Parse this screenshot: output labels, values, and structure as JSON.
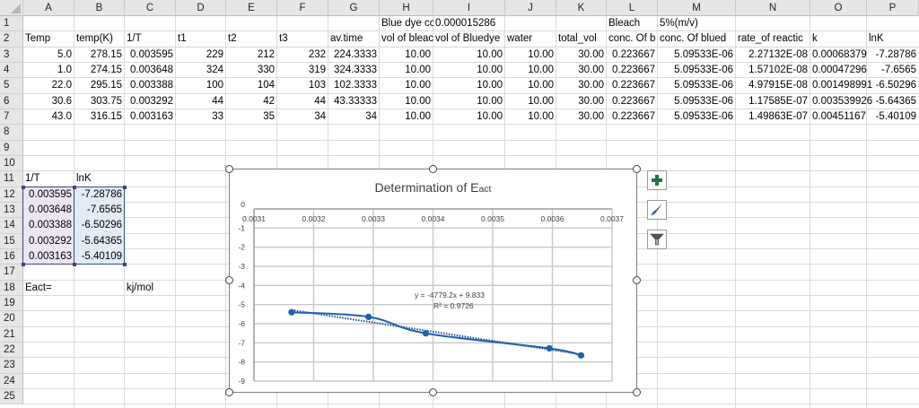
{
  "spreadsheet": {
    "columns": [
      "A",
      "B",
      "C",
      "D",
      "E",
      "F",
      "G",
      "H",
      "I",
      "J",
      "K",
      "L",
      "M",
      "N",
      "O",
      "P"
    ],
    "rows": [
      "1",
      "2",
      "3",
      "4",
      "5",
      "6",
      "7",
      "8",
      "9",
      "10",
      "11",
      "12",
      "13",
      "14",
      "15",
      "16",
      "17",
      "18",
      "19",
      "20",
      "21",
      "22",
      "23",
      "24",
      "25"
    ],
    "row1": {
      "H": "Blue dye cc",
      "I": "0.000015286",
      "L": "Bleach",
      "M": "5%(m/v)"
    },
    "row2": {
      "A": "Temp",
      "B": "temp(K)",
      "C": "1/T",
      "D": "t1",
      "E": "t2",
      "F": "t3",
      "G": "av.time",
      "H": "vol of bleac",
      "I": "vol of Bluedye",
      "J": "water",
      "K": "total_vol",
      "L": "conc. Of b",
      "M": "conc. Of blued",
      "N": "rate_of reactic",
      "O": "k",
      "P": "lnK"
    },
    "data_rows": [
      {
        "A": "5.0",
        "B": "278.15",
        "C": "0.003595",
        "D": "229",
        "E": "212",
        "F": "232",
        "G": "224.3333",
        "H": "10.00",
        "I": "10.00",
        "J": "10.00",
        "K": "30.00",
        "L": "0.223667",
        "M": "5.09533E-06",
        "N": "2.27132E-08",
        "O": "0.00068379",
        "P": "-7.28786"
      },
      {
        "A": "1.0",
        "B": "274.15",
        "C": "0.003648",
        "D": "324",
        "E": "330",
        "F": "319",
        "G": "324.3333",
        "H": "10.00",
        "I": "10.00",
        "J": "10.00",
        "K": "30.00",
        "L": "0.223667",
        "M": "5.09533E-06",
        "N": "1.57102E-08",
        "O": "0.00047296",
        "P": "-7.6565"
      },
      {
        "A": "22.0",
        "B": "295.15",
        "C": "0.003388",
        "D": "100",
        "E": "104",
        "F": "103",
        "G": "102.3333",
        "H": "10.00",
        "I": "10.00",
        "J": "10.00",
        "K": "30.00",
        "L": "0.223667",
        "M": "5.09533E-06",
        "N": "4.97915E-08",
        "O": "0.001498991",
        "P": "-6.50296"
      },
      {
        "A": "30.6",
        "B": "303.75",
        "C": "0.003292",
        "D": "44",
        "E": "42",
        "F": "44",
        "G": "43.33333",
        "H": "10.00",
        "I": "10.00",
        "J": "10.00",
        "K": "30.00",
        "L": "0.223667",
        "M": "5.09533E-06",
        "N": "1.17585E-07",
        "O": "0.003539926",
        "P": "-5.64365"
      },
      {
        "A": "43.0",
        "B": "316.15",
        "C": "0.003163",
        "D": "33",
        "E": "35",
        "F": "34",
        "G": "34",
        "H": "10.00",
        "I": "10.00",
        "J": "10.00",
        "K": "30.00",
        "L": "0.223667",
        "M": "5.09533E-06",
        "N": "1.49863E-07",
        "O": "0.00451167",
        "P": "-5.40109"
      }
    ],
    "summary_table": {
      "header_1": "1/T",
      "header_2": "lnK",
      "rows": [
        [
          "0.003595",
          "-7.28786"
        ],
        [
          "0.003648",
          "-7.6565"
        ],
        [
          "0.003388",
          "-6.50296"
        ],
        [
          "0.003292",
          "-5.64365"
        ],
        [
          "0.003163",
          "-5.40109"
        ]
      ]
    },
    "eact_label": "Eact=",
    "eact_unit": "kj/mol"
  },
  "chart": {
    "title_main": "Determination of E",
    "title_sub": "act",
    "x_ticks": [
      "0.0031",
      "0.0032",
      "0.0033",
      "0.0034",
      "0.0035",
      "0.0036",
      "0.0037"
    ],
    "y_ticks": [
      "0",
      "-1",
      "-2",
      "-3",
      "-4",
      "-5",
      "-6",
      "-7",
      "-8",
      "-9"
    ],
    "trend_equation": "y = -4779.2x + 9.833",
    "r_squared": "R² = 0.9726",
    "series_color": "#1f5fae",
    "buttons": {
      "add_element": "chart-elements",
      "styles": "chart-styles",
      "filters": "chart-filters"
    }
  },
  "chart_data": {
    "type": "scatter",
    "title": "Determination of Eact",
    "xlabel": "",
    "ylabel": "",
    "xlim": [
      0.0031,
      0.0037
    ],
    "ylim": [
      -9,
      0
    ],
    "x": [
      0.003595,
      0.003648,
      0.003388,
      0.003292,
      0.003163
    ],
    "series": [
      {
        "name": "lnK",
        "values": [
          -7.28786,
          -7.6565,
          -6.50296,
          -5.64365,
          -5.40109
        ],
        "style": "smoothed line with markers"
      }
    ],
    "trendline": {
      "type": "linear",
      "equation": "y = -4779.2x + 9.833",
      "r_squared": 0.9726
    },
    "grid": true,
    "legend": "none"
  }
}
